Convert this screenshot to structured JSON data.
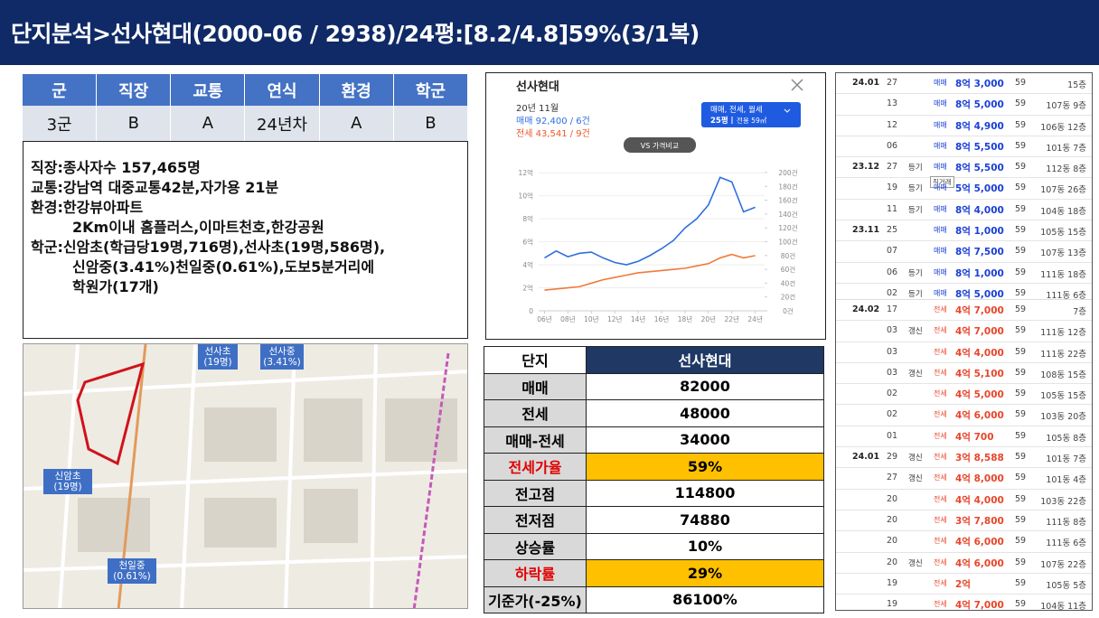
{
  "header": {
    "title": "단지분석>선사현대(2000-06 / 2938)/24평:[8.2/4.8]59%(3/1복)"
  },
  "scores": {
    "headers": [
      "군",
      "직장",
      "교통",
      "연식",
      "환경",
      "학군"
    ],
    "values": [
      "3군",
      "B",
      "A",
      "24년차",
      "A",
      "B"
    ]
  },
  "notes": [
    [
      "직장:종사자수  157,465명"
    ],
    [
      "교통:강남역  대중교통42분,자가용  21분"
    ],
    [
      "환경:한강뷰아파트",
      "2Km이내 홈플러스,이마트천호,한강공원"
    ],
    [
      "학군:신암초(학급당19명,716명),선사초(19명,586명),",
      "신암중(3.41%)천일중(0.61%),도보5분거리에",
      "학원가(17개)"
    ]
  ],
  "map": {
    "labels": [
      [
        "선사초",
        "(19명)"
      ],
      [
        "선사중",
        "(3.41%)"
      ],
      [
        "신암초",
        "(19명)"
      ],
      [
        "천일중",
        "(0.61%)"
      ]
    ]
  },
  "price_panel": {
    "name": "선사현대",
    "date": "20년 11월",
    "sale": "매매 92,400 / 6건",
    "jeonse": "전세 43,541 / 9건",
    "filter": "매매, 전세, 월세",
    "size": "25평",
    "area": "전용 59㎡",
    "compare": "VS 가격비교",
    "chart_data": {
      "type": "line",
      "x": [
        2006,
        2007,
        2008,
        2009,
        2010,
        2011,
        2012,
        2013,
        2014,
        2015,
        2016,
        2017,
        2018,
        2019,
        2020,
        2021,
        2022,
        2023,
        2024
      ],
      "series": [
        {
          "name": "매매",
          "color": "#2f6fe0",
          "values": [
            4.6,
            5.2,
            4.7,
            5.0,
            5.1,
            4.6,
            4.2,
            4.0,
            4.3,
            4.8,
            5.4,
            6.1,
            7.2,
            8.0,
            9.2,
            11.6,
            11.2,
            8.6,
            9.0
          ]
        },
        {
          "name": "전세",
          "color": "#f07a3a",
          "values": [
            1.8,
            1.9,
            2.0,
            2.1,
            2.4,
            2.7,
            2.9,
            3.1,
            3.3,
            3.4,
            3.5,
            3.6,
            3.7,
            3.9,
            4.1,
            4.6,
            4.9,
            4.6,
            4.8
          ]
        }
      ],
      "xlim": [
        2005.5,
        2024.8
      ],
      "xticks": [
        {
          "value": 2006,
          "label": "06년"
        },
        {
          "value": 2008,
          "label": "08년"
        },
        {
          "value": 2010,
          "label": "10년"
        },
        {
          "value": 2012,
          "label": "12년"
        },
        {
          "value": 2014,
          "label": "14년"
        },
        {
          "value": 2016,
          "label": "16년"
        },
        {
          "value": 2018,
          "label": "18년"
        },
        {
          "value": 2020,
          "label": "20년"
        },
        {
          "value": 2022,
          "label": "22년"
        },
        {
          "value": 2024,
          "label": "24년"
        }
      ],
      "ylim": [
        0,
        12.8
      ],
      "yticks": [
        0,
        {
          "value": 2,
          "label": "2억"
        },
        {
          "value": 4,
          "label": "4억"
        },
        {
          "value": 6,
          "label": "6억"
        },
        {
          "value": 8,
          "label": "8억"
        },
        {
          "value": 10,
          "label": "10억"
        },
        {
          "value": 12,
          "label": "12억"
        }
      ],
      "y2lim": [
        0,
        213
      ],
      "y2ticks": [
        {
          "value": 0,
          "label": "0건"
        },
        {
          "value": 20,
          "label": "20건"
        },
        {
          "value": 40,
          "label": "40건"
        },
        {
          "value": 60,
          "label": "60건"
        },
        {
          "value": 80,
          "label": "80건"
        },
        {
          "value": 100,
          "label": "100건"
        },
        {
          "value": 120,
          "label": "120건"
        },
        {
          "value": 140,
          "label": "140건"
        },
        {
          "value": 160,
          "label": "160건"
        },
        {
          "value": 180,
          "label": "180건"
        },
        {
          "value": 200,
          "label": "200건"
        }
      ]
    }
  },
  "summary": {
    "rows": [
      [
        "단지",
        "선사현대"
      ],
      [
        "매매",
        "82000"
      ],
      [
        "전세",
        "48000"
      ],
      [
        "매매-전세",
        "34000"
      ],
      [
        "전세가율",
        "59%"
      ],
      [
        "전고점",
        "114800"
      ],
      [
        "전저점",
        "74880"
      ],
      [
        "상승률",
        "10%"
      ],
      [
        "하락률",
        "29%"
      ],
      [
        "기준가(-25%)",
        "86100%"
      ]
    ]
  },
  "trades": {
    "sale": [
      {
        "month": "24.01",
        "day": "27",
        "kind": "매매",
        "amount": "8억 3,000",
        "area": "59",
        "unit": "15층"
      },
      {
        "day": "13",
        "kind": "매매",
        "amount": "8억 5,000",
        "area": "59",
        "unit": "107동 9층"
      },
      {
        "day": "12",
        "kind": "매매",
        "amount": "8억 4,900",
        "area": "59",
        "unit": "106동 12층"
      },
      {
        "day": "06",
        "kind": "매매",
        "amount": "8억 5,500",
        "area": "59",
        "unit": "101동 7층"
      },
      {
        "month": "23.12",
        "day": "27",
        "tag": "등기",
        "kind": "매매",
        "amount": "8억 5,500",
        "area": "59",
        "unit": "112동 8층"
      },
      {
        "day": "19",
        "tag": "등기",
        "badge": "직거래",
        "kind": "매매",
        "amount": "5억 5,000",
        "area": "59",
        "unit": "107동 26층"
      },
      {
        "day": "11",
        "tag": "등기",
        "kind": "매매",
        "amount": "8억 4,000",
        "area": "59",
        "unit": "104동 18층"
      },
      {
        "month": "23.11",
        "day": "25",
        "kind": "매매",
        "amount": "8억 1,000",
        "area": "59",
        "unit": "105동 15층"
      },
      {
        "day": "07",
        "kind": "매매",
        "amount": "8억 7,500",
        "area": "59",
        "unit": "107동 13층"
      },
      {
        "day": "06",
        "tag": "등기",
        "kind": "매매",
        "amount": "8억 1,000",
        "area": "59",
        "unit": "111동 18층"
      },
      {
        "day": "02",
        "tag": "등기",
        "kind": "매매",
        "amount": "8억 5,000",
        "area": "59",
        "unit": "111동 6층"
      }
    ],
    "jeonse": [
      {
        "month": "24.02",
        "day": "17",
        "kind": "전세",
        "amount": "4억 7,000",
        "area": "59",
        "unit": "7층"
      },
      {
        "day": "03",
        "tag": "갱신",
        "kind": "전세",
        "amount": "4억 7,000",
        "area": "59",
        "unit": "111동 12층"
      },
      {
        "day": "03",
        "kind": "전세",
        "amount": "4억 4,000",
        "area": "59",
        "unit": "111동 22층"
      },
      {
        "day": "03",
        "tag": "갱신",
        "kind": "전세",
        "amount": "4억 5,100",
        "area": "59",
        "unit": "108동 15층"
      },
      {
        "day": "02",
        "kind": "전세",
        "amount": "4억 5,000",
        "area": "59",
        "unit": "105동 15층"
      },
      {
        "day": "02",
        "kind": "전세",
        "amount": "4억 6,000",
        "area": "59",
        "unit": "103동 20층"
      },
      {
        "day": "01",
        "kind": "전세",
        "amount": "4억 700",
        "area": "59",
        "unit": "105동 8층"
      },
      {
        "month": "24.01",
        "day": "29",
        "tag": "갱신",
        "kind": "전세",
        "amount": "3억 8,588",
        "area": "59",
        "unit": "101동 7층"
      },
      {
        "day": "27",
        "tag": "갱신",
        "kind": "전세",
        "amount": "4억 8,000",
        "area": "59",
        "unit": "101동 4층"
      },
      {
        "day": "20",
        "kind": "전세",
        "amount": "4억 4,000",
        "area": "59",
        "unit": "103동 22층"
      },
      {
        "day": "20",
        "kind": "전세",
        "amount": "3억 7,800",
        "area": "59",
        "unit": "111동 8층"
      },
      {
        "day": "20",
        "kind": "전세",
        "amount": "4억 6,000",
        "area": "59",
        "unit": "111동 6층"
      },
      {
        "day": "20",
        "tag": "갱신",
        "kind": "전세",
        "amount": "4억 6,000",
        "area": "59",
        "unit": "107동 22층"
      },
      {
        "day": "19",
        "kind": "전세",
        "amount": "2억",
        "area": "59",
        "unit": "105동 5층"
      },
      {
        "day": "19",
        "kind": "전세",
        "amount": "4억 7,000",
        "area": "59",
        "unit": "104동 11층"
      }
    ]
  }
}
